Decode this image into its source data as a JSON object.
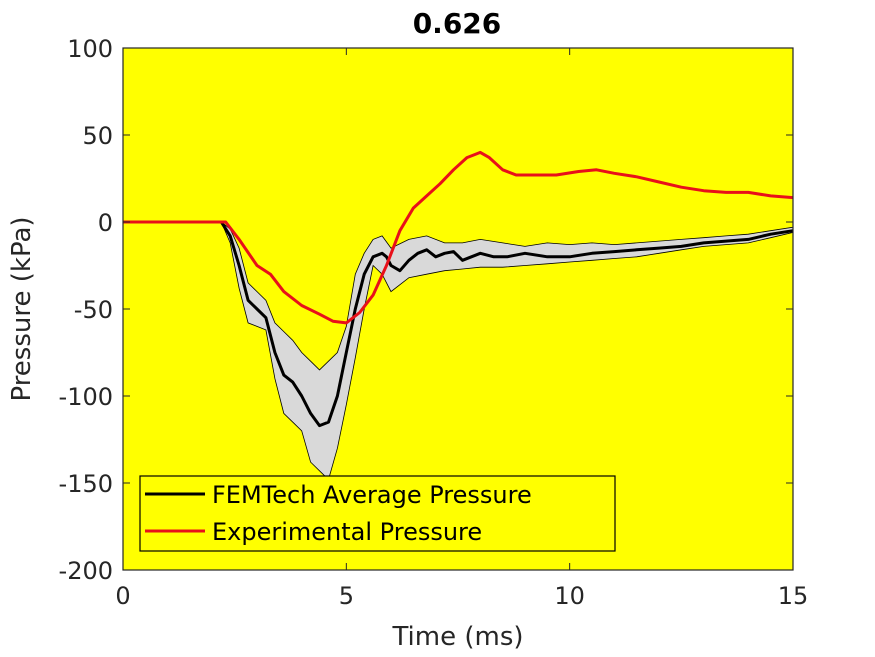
{
  "chart_data": {
    "type": "line",
    "title": "0.626",
    "xlabel": "Time (ms)",
    "ylabel": "Pressure (kPa)",
    "xlim": [
      0,
      15
    ],
    "ylim": [
      -200,
      100
    ],
    "xticks": [
      0,
      5,
      10,
      15
    ],
    "xtick_labels": [
      "0",
      "5",
      "10",
      "15"
    ],
    "yticks": [
      -200,
      -150,
      -100,
      -50,
      0,
      50,
      100
    ],
    "ytick_labels": [
      "-200",
      "-150",
      "-100",
      "-50",
      "0",
      "50",
      "100"
    ],
    "grid": false,
    "legend_position": "bottom-left",
    "plot_background": "#ffff00",
    "series": [
      {
        "name": "FEMTech Average Pressure",
        "color": "#000000",
        "x": [
          0,
          2.2,
          2.4,
          2.6,
          2.8,
          3.0,
          3.2,
          3.4,
          3.6,
          3.8,
          4.0,
          4.2,
          4.4,
          4.6,
          4.8,
          5.0,
          5.2,
          5.4,
          5.6,
          5.8,
          5.9,
          6.0,
          6.2,
          6.4,
          6.6,
          6.8,
          7.0,
          7.2,
          7.4,
          7.6,
          7.8,
          8.0,
          8.3,
          8.6,
          9.0,
          9.5,
          10.0,
          10.5,
          11.0,
          11.5,
          12.0,
          12.5,
          13.0,
          13.5,
          14.0,
          14.5,
          15.0
        ],
        "values": [
          0,
          0,
          -8,
          -25,
          -45,
          -50,
          -55,
          -75,
          -88,
          -92,
          -100,
          -110,
          -117,
          -115,
          -100,
          -75,
          -50,
          -30,
          -20,
          -18,
          -20,
          -25,
          -28,
          -22,
          -18,
          -16,
          -20,
          -18,
          -17,
          -22,
          -20,
          -18,
          -20,
          -20,
          -18,
          -20,
          -20,
          -18,
          -17,
          -16,
          -15,
          -14,
          -12,
          -11,
          -10,
          -7,
          -5
        ]
      },
      {
        "name": "Experimental Pressure",
        "color": "#e8101a",
        "x": [
          0,
          2.3,
          2.6,
          3.0,
          3.3,
          3.6,
          4.0,
          4.4,
          4.7,
          5.0,
          5.3,
          5.6,
          5.9,
          6.2,
          6.5,
          6.8,
          7.1,
          7.4,
          7.7,
          7.9,
          8.0,
          8.2,
          8.5,
          8.8,
          9.2,
          9.7,
          10.2,
          10.6,
          11.0,
          11.5,
          12.0,
          12.5,
          13.0,
          13.5,
          14.0,
          14.5,
          15.0
        ],
        "values": [
          0,
          0,
          -10,
          -25,
          -30,
          -40,
          -48,
          -53,
          -57,
          -58,
          -52,
          -42,
          -25,
          -5,
          8,
          15,
          22,
          30,
          37,
          39,
          40,
          37,
          30,
          27,
          27,
          27,
          29,
          30,
          28,
          26,
          23,
          20,
          18,
          17,
          17,
          15,
          14
        ]
      }
    ],
    "band": {
      "name": "FEMTech Pressure Range",
      "color": "#d9d9d9",
      "x": [
        2.2,
        2.4,
        2.6,
        2.8,
        3.0,
        3.2,
        3.4,
        3.6,
        3.8,
        4.0,
        4.2,
        4.4,
        4.6,
        4.8,
        5.0,
        5.2,
        5.4,
        5.6,
        5.8,
        6.0,
        6.4,
        6.8,
        7.2,
        7.6,
        8.0,
        8.5,
        9.0,
        9.5,
        10.0,
        10.5,
        11.0,
        11.5,
        12.0,
        12.5,
        13.0,
        13.5,
        14.0,
        14.5,
        15.0
      ],
      "lower": [
        0,
        -12,
        -38,
        -58,
        -60,
        -62,
        -90,
        -110,
        -115,
        -120,
        -138,
        -143,
        -148,
        -130,
        -105,
        -78,
        -50,
        -25,
        -30,
        -40,
        -32,
        -30,
        -28,
        -27,
        -26,
        -26,
        -25,
        -24,
        -23,
        -22,
        -21,
        -20,
        -18,
        -16,
        -14,
        -13,
        -12,
        -9,
        -6
      ],
      "upper": [
        0,
        -4,
        -15,
        -35,
        -40,
        -45,
        -58,
        -63,
        -68,
        -75,
        -80,
        -85,
        -80,
        -75,
        -60,
        -30,
        -18,
        -10,
        -8,
        -15,
        -10,
        -8,
        -12,
        -12,
        -10,
        -12,
        -14,
        -12,
        -13,
        -12,
        -13,
        -12,
        -11,
        -10,
        -9,
        -8,
        -7,
        -5,
        -3
      ]
    }
  }
}
